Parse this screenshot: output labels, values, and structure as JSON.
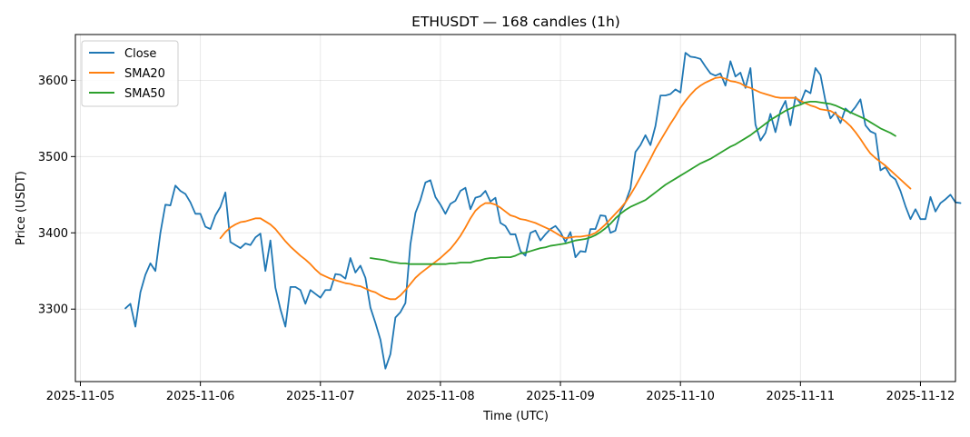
{
  "chart_data": {
    "type": "line",
    "title": "ETHUSDT — 168 candles (1h)",
    "xlabel": "Time (UTC)",
    "ylabel": "Price (USDT)",
    "x_start": "2025-11-05 09:00",
    "x_step_hours": 1,
    "x_ticks": [
      "2025-11-05",
      "2025-11-06",
      "2025-11-07",
      "2025-11-08",
      "2025-11-09",
      "2025-11-10",
      "2025-11-11",
      "2025-11-12"
    ],
    "x_range": [
      "2025-11-04 23:00",
      "2025-11-12 07:00"
    ],
    "y_ticks": [
      3300,
      3400,
      3500,
      3600
    ],
    "ylim": [
      3205,
      3660
    ],
    "grid": true,
    "legend_position": "upper-left",
    "series": [
      {
        "name": "Close",
        "color": "#1f77b4",
        "values": [
          3301,
          3307,
          3277,
          3322,
          3345,
          3360,
          3350,
          3400,
          3437,
          3436,
          3462,
          3455,
          3451,
          3440,
          3425,
          3425,
          3408,
          3405,
          3423,
          3434,
          3453,
          3388,
          3384,
          3380,
          3386,
          3384,
          3394,
          3399,
          3350,
          3390,
          3328,
          3300,
          3277,
          3329,
          3329,
          3325,
          3307,
          3325,
          3320,
          3315,
          3325,
          3325,
          3346,
          3345,
          3340,
          3367,
          3348,
          3357,
          3341,
          3302,
          3282,
          3260,
          3222,
          3241,
          3289,
          3296,
          3308,
          3385,
          3426,
          3443,
          3466,
          3469,
          3447,
          3437,
          3425,
          3438,
          3442,
          3455,
          3459,
          3431,
          3446,
          3448,
          3455,
          3441,
          3446,
          3413,
          3409,
          3398,
          3398,
          3376,
          3370,
          3400,
          3403,
          3390,
          3398,
          3405,
          3409,
          3401,
          3388,
          3401,
          3368,
          3376,
          3375,
          3405,
          3405,
          3423,
          3422,
          3400,
          3403,
          3428,
          3440,
          3458,
          3506,
          3515,
          3528,
          3515,
          3540,
          3580,
          3580,
          3582,
          3588,
          3584,
          3636,
          3631,
          3630,
          3628,
          3618,
          3609,
          3606,
          3609,
          3593,
          3625,
          3605,
          3610,
          3590,
          3616,
          3542,
          3521,
          3531,
          3556,
          3532,
          3560,
          3573,
          3541,
          3578,
          3570,
          3587,
          3583,
          3616,
          3607,
          3573,
          3550,
          3558,
          3544,
          3563,
          3557,
          3565,
          3575,
          3541,
          3533,
          3530,
          3482,
          3486,
          3475,
          3470,
          3455,
          3435,
          3418,
          3431,
          3418,
          3418,
          3447,
          3428,
          3439,
          3444,
          3450,
          3440,
          3439
        ]
      },
      {
        "name": "SMA20",
        "color": "#ff7f0e",
        "start_index": 19,
        "values": [
          3393,
          3401,
          3407,
          3411,
          3414,
          3415,
          3417,
          3419,
          3419,
          3415,
          3411,
          3405,
          3397,
          3389,
          3382,
          3376,
          3370,
          3365,
          3359,
          3352,
          3346,
          3343,
          3340,
          3338,
          3336,
          3334,
          3333,
          3331,
          3330,
          3327,
          3324,
          3322,
          3318,
          3315,
          3313,
          3313,
          3318,
          3325,
          3333,
          3341,
          3347,
          3352,
          3357,
          3362,
          3367,
          3373,
          3379,
          3387,
          3396,
          3407,
          3419,
          3429,
          3435,
          3439,
          3439,
          3437,
          3433,
          3428,
          3423,
          3421,
          3418,
          3417,
          3415,
          3413,
          3410,
          3407,
          3404,
          3400,
          3396,
          3393,
          3394,
          3395,
          3395,
          3396,
          3397,
          3400,
          3405,
          3411,
          3418,
          3425,
          3432,
          3440,
          3450,
          3461,
          3473,
          3485,
          3497,
          3510,
          3521,
          3532,
          3543,
          3553,
          3564,
          3573,
          3581,
          3588,
          3593,
          3597,
          3600,
          3603,
          3604,
          3602,
          3599,
          3598,
          3596,
          3592,
          3590,
          3587,
          3584,
          3582,
          3580,
          3578,
          3577,
          3577,
          3577,
          3577,
          3573,
          3570,
          3567,
          3565,
          3562,
          3561,
          3560,
          3556,
          3551,
          3546,
          3540,
          3532,
          3523,
          3513,
          3504,
          3498,
          3493,
          3488,
          3482,
          3476,
          3470,
          3464,
          3458
        ]
      },
      {
        "name": "SMA50",
        "color": "#2ca02c",
        "start_index": 49,
        "values": [
          3367,
          3366,
          3365,
          3364,
          3362,
          3361,
          3360,
          3360,
          3359,
          3359,
          3359,
          3359,
          3359,
          3359,
          3359,
          3359,
          3360,
          3360,
          3361,
          3361,
          3361,
          3363,
          3364,
          3366,
          3367,
          3367,
          3368,
          3368,
          3368,
          3370,
          3373,
          3374,
          3376,
          3378,
          3380,
          3381,
          3383,
          3384,
          3385,
          3386,
          3388,
          3390,
          3391,
          3392,
          3394,
          3397,
          3401,
          3406,
          3412,
          3419,
          3425,
          3430,
          3434,
          3437,
          3440,
          3443,
          3448,
          3453,
          3458,
          3463,
          3467,
          3471,
          3475,
          3479,
          3483,
          3487,
          3491,
          3494,
          3497,
          3501,
          3505,
          3509,
          3513,
          3516,
          3520,
          3524,
          3528,
          3533,
          3538,
          3543,
          3548,
          3552,
          3556,
          3560,
          3563,
          3566,
          3568,
          3571,
          3572,
          3572,
          3571,
          3570,
          3569,
          3567,
          3564,
          3561,
          3558,
          3555,
          3552,
          3549,
          3545,
          3541,
          3537,
          3534,
          3531,
          3527
        ]
      }
    ]
  }
}
